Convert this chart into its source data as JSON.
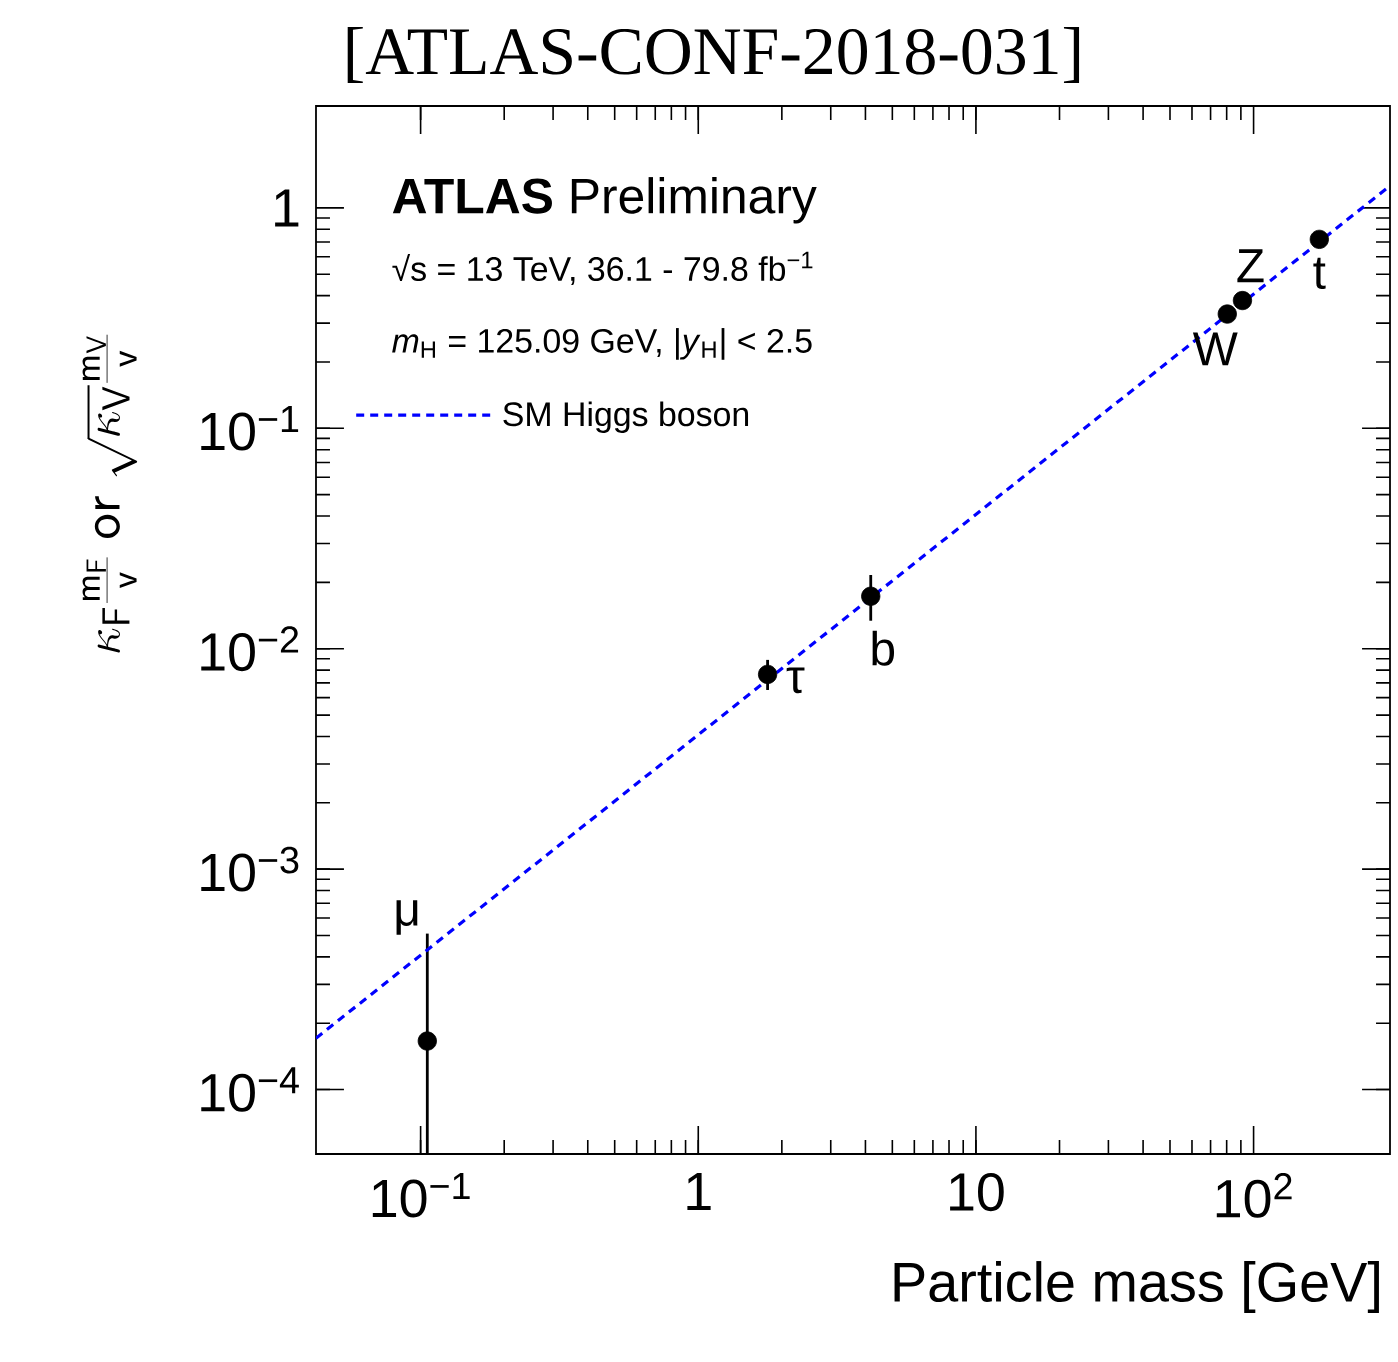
{
  "chart_data": {
    "type": "scatter",
    "title": "[ATLAS-CONF-2018-031]",
    "xlabel": "Particle mass [GeV]",
    "ylabel": "\\kappa_{\\mathsf{F}}\\frac{\\mathsf{m}_{\\mathsf{F}}}{\\mathsf{v}}\\ \\mathsf{or}\\ \\sqrt{\\kappa_{\\mathsf{V}}}\\frac{\\mathsf{m}_{\\mathsf{V}}}{\\mathsf{v}}",
    "log": "xy",
    "legend": "top left",
    "xlim": [
      0.042,
      310
    ],
    "ylim": [
      5.1e-05,
      2.9
    ],
    "xticks": [
      {
        "value": 0.1,
        "label": "10$^{−1}$"
      },
      1,
      10,
      {
        "value": 100,
        "label": "10$^{2}$"
      }
    ],
    "yticks": [
      {
        "value": 0.0001,
        "label": "10$^{−4}$"
      },
      {
        "value": 0.001,
        "label": "10$^{−3}$"
      },
      {
        "value": 0.01,
        "label": "10$^{−2}$"
      },
      {
        "value": 0.1,
        "label": "10$^{−1}$"
      },
      1
    ],
    "series": [
      {
        "marker": "circle",
        "color": "#000000",
        "x": [
          0.1057,
          1.777,
          4.18,
          80.4,
          91.19,
          172.5
        ],
        "values": [
          0.000166,
          0.00765,
          0.0173,
          0.33,
          0.38,
          0.72
        ],
        "errors": [
          [
            5.1e-05,
            0.00051
          ],
          [
            0.0065,
            0.0089
          ],
          [
            0.0134,
            0.0216
          ],
          null,
          null,
          null
        ]
      },
      {
        "type": "line",
        "name": "SM Higgs boson",
        "color": "#0000ff",
        "line_style": "dashed",
        "marker": "none",
        "x": [
          0.042,
          310
        ],
        "values": [
          0.000171,
          1.26
        ]
      }
    ],
    "annotations": [
      "**ATLAS** Preliminary",
      "√s = 13 TeV, 36.1 - 79.8 fb$^{−1}$",
      "*m*$_{H}$ = 125.09 GeV, |*y*$_{H}$| < 2.5",
      {
        "text": "μ",
        "x": 0.1057,
        "y": 0.000166
      },
      {
        "text": "τ",
        "x": 1.777,
        "y": 0.00765
      },
      {
        "text": "b",
        "x": 4.18,
        "y": 0.0173
      },
      {
        "text": "W",
        "x": 80.4,
        "y": 0.33
      },
      {
        "text": "Z",
        "x": 91.19,
        "y": 0.38
      },
      {
        "text": "t",
        "x": 172.5,
        "y": 0.72
      }
    ]
  }
}
